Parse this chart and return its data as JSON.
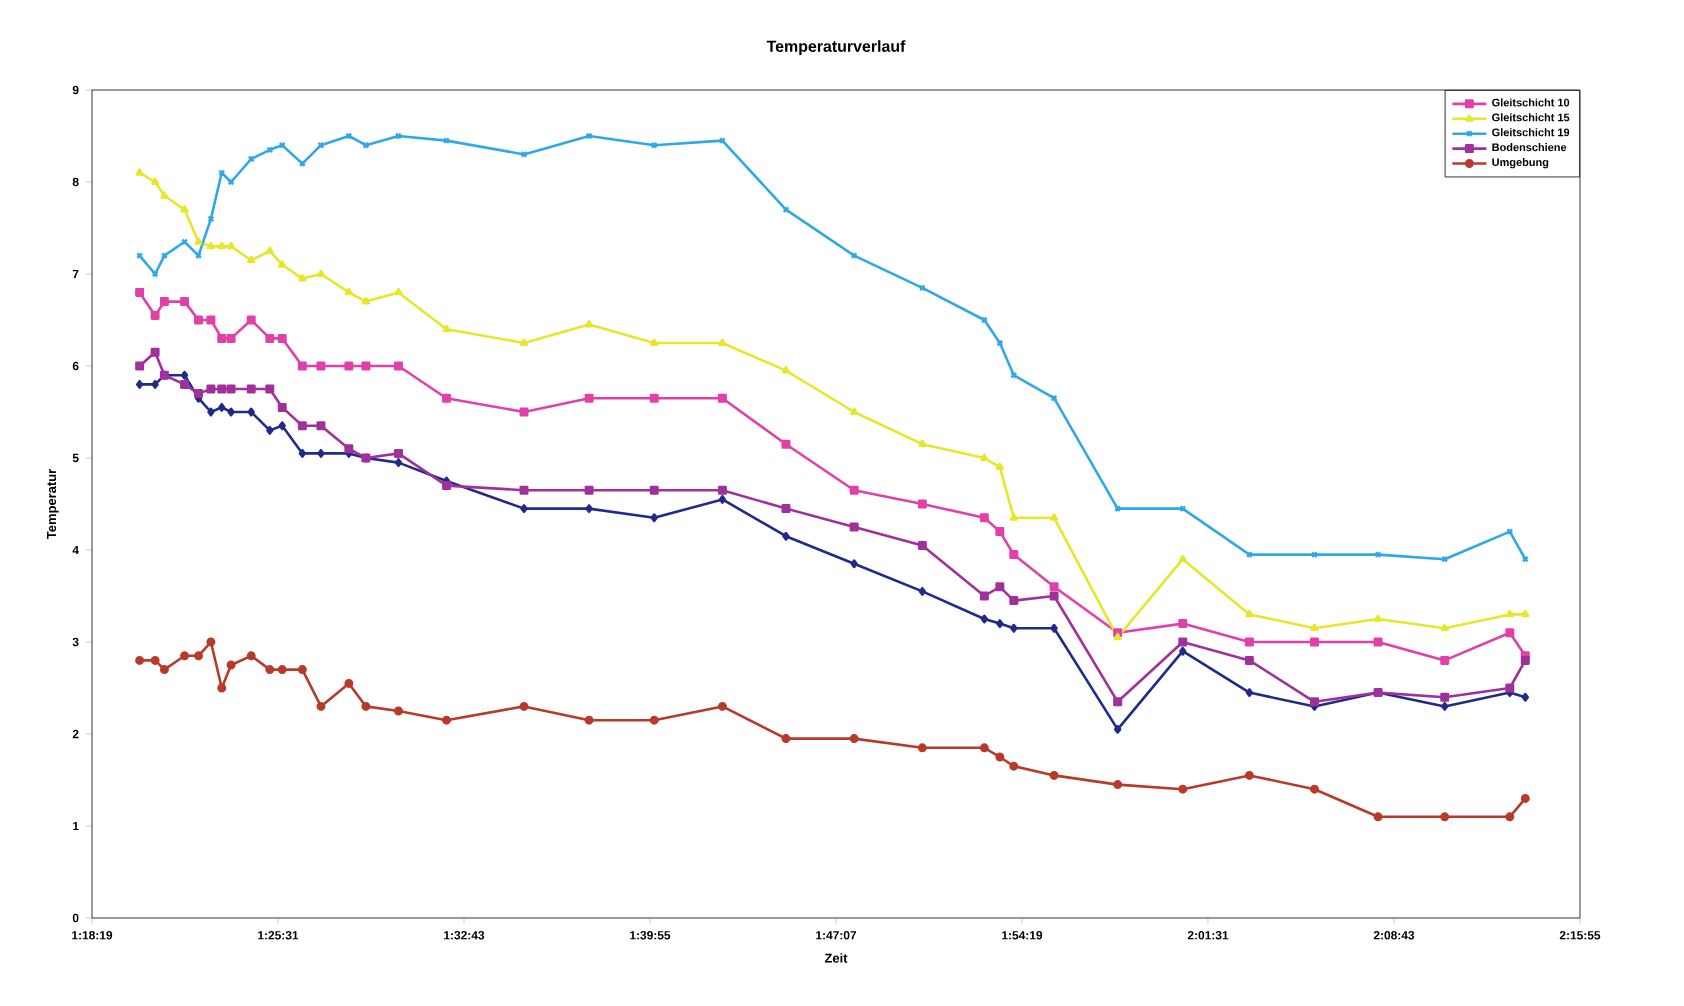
{
  "chart_data": {
    "type": "line",
    "title": "Temperaturverlauf",
    "xlabel": "Zeit",
    "ylabel": "Temperatur",
    "x": [
      1.336,
      1.346,
      1.352,
      1.365,
      1.374,
      1.382,
      1.389,
      1.395,
      1.408,
      1.42,
      1.428,
      1.441,
      1.453,
      1.471,
      1.482,
      1.503,
      1.534,
      1.584,
      1.626,
      1.668,
      1.712,
      1.753,
      1.797,
      1.841,
      1.881,
      1.891,
      1.9,
      1.926,
      1.967,
      2.009,
      2.052,
      2.094,
      2.135,
      2.178,
      2.22,
      2.23
    ],
    "series": [
      {
        "color": "#1f2a8a",
        "marker": "diamond",
        "values": [
          5.8,
          5.8,
          5.9,
          5.9,
          5.65,
          5.5,
          5.55,
          5.5,
          5.5,
          5.3,
          5.35,
          5.05,
          5.05,
          5.05,
          5.0,
          4.95,
          4.75,
          4.45,
          4.45,
          4.35,
          4.55,
          4.15,
          3.85,
          3.55,
          3.25,
          3.2,
          3.15,
          3.15,
          2.05,
          2.9,
          2.45,
          2.3,
          2.45,
          2.3,
          2.45,
          2.4
        ]
      },
      {
        "name": "Gleitschicht 10",
        "color": "#e040a8",
        "marker": "square",
        "values": [
          6.8,
          6.55,
          6.7,
          6.7,
          6.5,
          6.5,
          6.3,
          6.3,
          6.5,
          6.3,
          6.3,
          6.0,
          6.0,
          6.0,
          6.0,
          6.0,
          5.65,
          5.5,
          5.65,
          5.65,
          5.65,
          5.15,
          4.65,
          4.5,
          4.35,
          4.2,
          3.95,
          3.6,
          3.1,
          3.2,
          3.0,
          3.0,
          3.0,
          2.8,
          3.1,
          2.85
        ]
      },
      {
        "name": "Gleitschicht 15",
        "color": "#e6e62a",
        "marker": "triangle",
        "values": [
          8.1,
          8.0,
          7.85,
          7.7,
          7.35,
          7.3,
          7.3,
          7.3,
          7.15,
          7.25,
          7.1,
          6.95,
          7.0,
          6.8,
          6.7,
          6.8,
          6.4,
          6.25,
          6.45,
          6.25,
          6.25,
          5.95,
          5.5,
          5.15,
          5.0,
          4.9,
          4.35,
          4.35,
          3.05,
          3.9,
          3.3,
          3.15,
          3.25,
          3.15,
          3.3,
          3.3
        ]
      },
      {
        "name": "Gleitschicht 19",
        "color": "#30a8e8",
        "marker": "cross",
        "values": [
          7.2,
          7.0,
          7.2,
          7.35,
          7.2,
          7.6,
          8.1,
          8.0,
          8.25,
          8.35,
          8.4,
          8.2,
          8.4,
          8.5,
          8.4,
          8.5,
          8.45,
          8.3,
          8.5,
          8.4,
          8.45,
          7.7,
          7.2,
          6.85,
          6.5,
          6.25,
          5.9,
          5.65,
          4.45,
          4.45,
          3.95,
          3.95,
          3.95,
          3.9,
          4.2,
          3.9
        ]
      },
      {
        "name": "Bodenschiene",
        "color": "#a0309a",
        "marker": "square",
        "values": [
          6.0,
          6.15,
          5.9,
          5.8,
          5.7,
          5.75,
          5.75,
          5.75,
          5.75,
          5.75,
          5.55,
          5.35,
          5.35,
          5.1,
          5.0,
          5.05,
          4.7,
          4.65,
          4.65,
          4.65,
          4.65,
          4.45,
          4.25,
          4.05,
          3.5,
          3.6,
          3.45,
          3.5,
          2.35,
          3.0,
          2.8,
          2.35,
          2.45,
          2.4,
          2.5,
          2.8
        ]
      },
      {
        "name": "Umgebung",
        "color": "#b83a2a",
        "marker": "circle",
        "values": [
          2.8,
          2.8,
          2.7,
          2.85,
          2.85,
          3.0,
          2.5,
          2.75,
          2.85,
          2.7,
          2.7,
          2.7,
          2.3,
          2.55,
          2.3,
          2.25,
          2.15,
          2.3,
          2.15,
          2.15,
          2.3,
          1.95,
          1.95,
          1.85,
          1.85,
          1.75,
          1.65,
          1.55,
          1.45,
          1.4,
          1.55,
          1.4,
          1.1,
          1.1,
          1.1,
          1.3
        ]
      }
    ],
    "xlim": [
      1.30528,
      2.26528
    ],
    "xticks": [
      {
        "value": 1.30528,
        "label": "1:18:19"
      },
      {
        "value": 1.42528,
        "label": "1:25:31"
      },
      {
        "value": 1.54528,
        "label": "1:32:43"
      },
      {
        "value": 1.66528,
        "label": "1:39:55"
      },
      {
        "value": 1.78528,
        "label": "1:47:07"
      },
      {
        "value": 1.90528,
        "label": "1:54:19"
      },
      {
        "value": 2.02528,
        "label": "2:01:31"
      },
      {
        "value": 2.14528,
        "label": "2:08:43"
      },
      {
        "value": 2.26528,
        "label": "2:15:55"
      }
    ],
    "ylim": [
      0,
      9
    ],
    "yticks": [
      0,
      1,
      2,
      3,
      4,
      5,
      6,
      7,
      8,
      9
    ],
    "legend": "top right",
    "grid": false,
    "line_style": "solid"
  }
}
